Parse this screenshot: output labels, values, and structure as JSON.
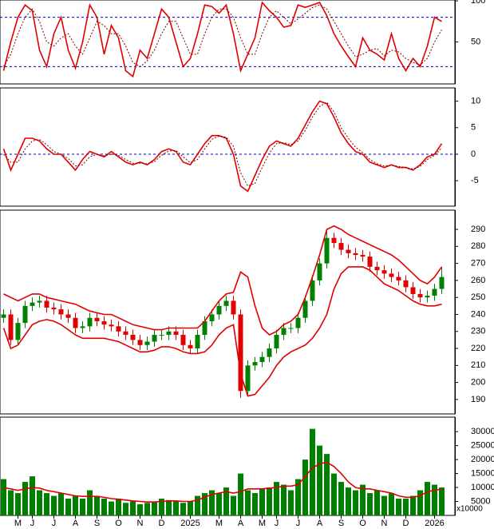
{
  "chart_data": [
    {
      "type": "line",
      "ylim": [
        -1,
        101
      ],
      "yticks": [
        50,
        100
      ],
      "hlines": [
        80,
        20
      ],
      "hline_color": "#0000c0",
      "series": [
        {
          "color": "#e00000",
          "values": [
            15,
            50,
            80,
            95,
            88,
            40,
            20,
            60,
            80,
            40,
            18,
            50,
            95,
            80,
            35,
            70,
            55,
            15,
            8,
            40,
            30,
            60,
            90,
            80,
            50,
            20,
            30,
            60,
            95,
            93,
            85,
            95,
            60,
            15,
            35,
            55,
            98,
            88,
            80,
            68,
            70,
            95,
            92,
            95,
            98,
            82,
            60,
            45,
            32,
            20,
            55,
            40,
            35,
            28,
            60,
            30,
            15,
            30,
            20,
            45,
            80,
            75
          ]
        },
        {
          "color": "#800000",
          "dash": true,
          "values": [
            20,
            35,
            60,
            80,
            90,
            75,
            50,
            45,
            55,
            60,
            45,
            35,
            55,
            75,
            70,
            60,
            60,
            45,
            25,
            20,
            27,
            40,
            60,
            75,
            75,
            55,
            35,
            35,
            60,
            80,
            90,
            90,
            80,
            55,
            35,
            35,
            60,
            80,
            88,
            80,
            72,
            78,
            85,
            92,
            95,
            90,
            75,
            60,
            45,
            32,
            35,
            40,
            42,
            33,
            40,
            38,
            30,
            25,
            22,
            30,
            50,
            65
          ]
        }
      ]
    },
    {
      "type": "line",
      "ylim": [
        -9.8,
        12.5
      ],
      "yticks": [
        -5,
        0,
        5,
        10
      ],
      "hlines": [
        0
      ],
      "hline_color": "#0000c0",
      "series": [
        {
          "color": "#e00000",
          "values": [
            1,
            -3,
            0,
            3,
            3,
            2.5,
            1,
            0,
            0,
            -1.5,
            -3,
            -1,
            0.5,
            0,
            -0.5,
            0.5,
            -0.5,
            -1.5,
            -2,
            -1.5,
            -2,
            -1,
            0.5,
            1,
            0.5,
            -1.5,
            -2,
            0,
            2,
            3.5,
            3.5,
            3,
            0,
            -6,
            -7,
            -4,
            -1,
            1.5,
            2.5,
            2,
            1.5,
            3,
            5.5,
            8,
            10,
            9.5,
            7,
            4,
            2,
            0.5,
            0,
            -1.5,
            -2,
            -2.5,
            -2,
            -2.5,
            -2.5,
            -3,
            -2,
            -0.5,
            0,
            2
          ]
        },
        {
          "color": "#800000",
          "dash": true,
          "values": [
            0,
            -1.5,
            -1.5,
            1,
            2.5,
            2.8,
            1.8,
            0.5,
            0,
            -0.8,
            -2.2,
            -2,
            -0.5,
            0,
            -0.3,
            0,
            -0.2,
            -1,
            -1.7,
            -1.7,
            -1.8,
            -1.4,
            -0.2,
            0.6,
            0.7,
            -0.5,
            -1.6,
            -1,
            1,
            2.8,
            3.4,
            3.2,
            1.5,
            -3.5,
            -6,
            -5.5,
            -2.5,
            0.2,
            2,
            2.2,
            1.8,
            2.5,
            4.5,
            7,
            9,
            9.8,
            8,
            5,
            3,
            1.3,
            0.3,
            -1,
            -1.8,
            -2.2,
            -2.1,
            -2.3,
            -2.5,
            -2.8,
            -2.3,
            -1,
            -0.2,
            1.2
          ]
        }
      ]
    },
    {
      "type": "candlestick",
      "ylim": [
        181.5,
        301.3
      ],
      "yticks": [
        190,
        200,
        210,
        220,
        230,
        240,
        250,
        260,
        270,
        280,
        290
      ],
      "up_color": "#008000",
      "down_color": "#e00000",
      "open": [
        238,
        240,
        225,
        235,
        245,
        247,
        248,
        244,
        243,
        240,
        238,
        232,
        233,
        238,
        236,
        234,
        233,
        230,
        228,
        225,
        222,
        224,
        228,
        228,
        230,
        228,
        222,
        220,
        228,
        236,
        240,
        245,
        248,
        240,
        195,
        210,
        212,
        215,
        220,
        228,
        232,
        232,
        238,
        248,
        260,
        270,
        285,
        282,
        278,
        276,
        275,
        274,
        268,
        266,
        264,
        262,
        260,
        256,
        252,
        250,
        251,
        255
      ],
      "high": [
        243,
        243,
        238,
        248,
        250,
        251,
        251,
        247,
        246,
        243,
        241,
        236,
        241,
        241,
        239,
        237,
        236,
        233,
        231,
        228,
        227,
        231,
        231,
        233,
        233,
        231,
        225,
        231,
        239,
        243,
        248,
        251,
        251,
        243,
        213,
        215,
        218,
        223,
        231,
        235,
        235,
        241,
        251,
        263,
        273,
        289,
        288,
        285,
        281,
        279,
        278,
        277,
        271,
        269,
        267,
        265,
        263,
        259,
        255,
        254,
        258,
        268
      ],
      "low": [
        235,
        222,
        222,
        232,
        242,
        244,
        241,
        240,
        237,
        235,
        229,
        229,
        230,
        233,
        231,
        230,
        227,
        225,
        222,
        219,
        219,
        221,
        225,
        225,
        225,
        219,
        217,
        217,
        225,
        233,
        237,
        242,
        237,
        191,
        192,
        207,
        209,
        212,
        217,
        225,
        229,
        229,
        235,
        245,
        257,
        267,
        279,
        275,
        273,
        272,
        271,
        265,
        263,
        261,
        259,
        257,
        253,
        249,
        247,
        247,
        248,
        252
      ],
      "close": [
        240,
        225,
        235,
        245,
        247,
        248,
        244,
        243,
        240,
        238,
        232,
        233,
        238,
        236,
        234,
        233,
        230,
        228,
        225,
        222,
        224,
        228,
        228,
        230,
        228,
        222,
        220,
        228,
        236,
        240,
        245,
        248,
        240,
        195,
        210,
        212,
        215,
        220,
        228,
        232,
        232,
        238,
        248,
        260,
        270,
        285,
        282,
        278,
        276,
        275,
        274,
        268,
        266,
        264,
        262,
        260,
        256,
        252,
        250,
        251,
        255,
        262
      ],
      "series": [
        {
          "color": "#e00000",
          "values": [
            252,
            250,
            248,
            250,
            252,
            252,
            250,
            249,
            248,
            247,
            246,
            244,
            242,
            241,
            240,
            240,
            238,
            236,
            234,
            233,
            232,
            231,
            231,
            232,
            232,
            232,
            232,
            232,
            236,
            242,
            248,
            252,
            253,
            265,
            262,
            245,
            232,
            228,
            230,
            234,
            236,
            240,
            250,
            262,
            275,
            290,
            292,
            290,
            287,
            285,
            283,
            281,
            279,
            277,
            275,
            272,
            268,
            264,
            260,
            258,
            262,
            268
          ]
        },
        {
          "color": "#e00000",
          "values": [
            232,
            220,
            222,
            228,
            234,
            236,
            237,
            236,
            234,
            231,
            228,
            226,
            226,
            226,
            226,
            225,
            224,
            222,
            220,
            218,
            218,
            219,
            221,
            221,
            220,
            218,
            217,
            217,
            218,
            222,
            228,
            232,
            234,
            205,
            192,
            193,
            198,
            203,
            210,
            215,
            218,
            220,
            222,
            226,
            232,
            240,
            255,
            264,
            268,
            268,
            268,
            266,
            262,
            258,
            256,
            254,
            251,
            248,
            246,
            245,
            245,
            246
          ]
        }
      ]
    },
    {
      "type": "bar",
      "ylim": [
        0,
        35200
      ],
      "yticks": [
        5000,
        10000,
        15000,
        20000,
        25000,
        30000
      ],
      "unit_label": "x10000",
      "color": "#008000",
      "values": [
        13000,
        9000,
        8000,
        12000,
        14000,
        9000,
        8000,
        7000,
        8000,
        6000,
        7000,
        6000,
        9000,
        7000,
        6000,
        5000,
        6000,
        4500,
        5000,
        4000,
        4500,
        5000,
        6000,
        5500,
        5000,
        4500,
        5000,
        7000,
        8000,
        9000,
        8000,
        10000,
        7000,
        15000,
        9000,
        8000,
        9500,
        10000,
        12000,
        11000,
        9000,
        13000,
        20000,
        31000,
        25000,
        22000,
        15000,
        12000,
        10000,
        9000,
        11000,
        8000,
        9000,
        7000,
        8000,
        6000,
        6000,
        7000,
        9000,
        12000,
        11000,
        10000
      ],
      "series": [
        {
          "color": "#e00000",
          "values": [
            10000,
            9500,
            9000,
            9500,
            10000,
            9800,
            9000,
            8500,
            8000,
            7500,
            7000,
            6800,
            6800,
            6800,
            6500,
            6000,
            5800,
            5500,
            5200,
            5000,
            4800,
            4800,
            5000,
            5200,
            5200,
            5000,
            5000,
            5500,
            6500,
            7500,
            8000,
            8500,
            8000,
            8500,
            9500,
            9500,
            9500,
            9800,
            10000,
            10500,
            10500,
            11000,
            14000,
            17000,
            18500,
            19000,
            17500,
            15000,
            12000,
            10000,
            9500,
            9500,
            9000,
            8500,
            8000,
            7000,
            6500,
            6500,
            7000,
            8500,
            9000,
            9500
          ]
        }
      ],
      "categories": [
        null,
        null,
        "M",
        null,
        "J",
        null,
        null,
        "J",
        null,
        null,
        "A",
        null,
        null,
        "S",
        null,
        null,
        "O",
        null,
        null,
        "N",
        null,
        null,
        "D",
        null,
        null,
        null,
        "2025",
        null,
        null,
        null,
        "M",
        null,
        null,
        "A",
        null,
        null,
        "M",
        null,
        "J",
        null,
        null,
        "J",
        null,
        null,
        "A",
        null,
        null,
        "S",
        null,
        null,
        "O",
        null,
        null,
        "N",
        null,
        null,
        "D",
        null,
        null,
        null,
        "2026",
        null
      ]
    }
  ]
}
